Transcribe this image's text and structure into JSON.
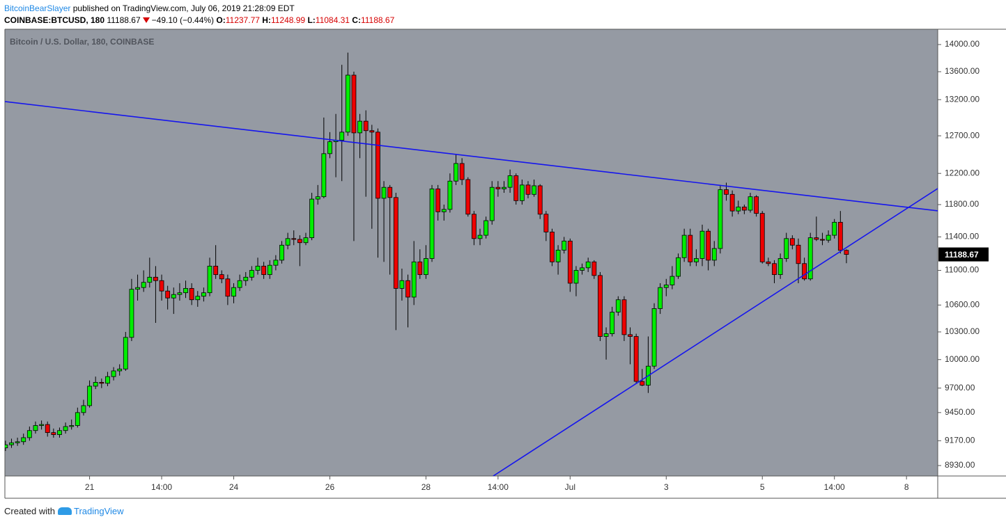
{
  "header": {
    "author": "BitcoinBearSlayer",
    "published": "published on TradingView.com, July 06, 2019 21:28:09 EDT",
    "symbol": "COINBASE:BTCUSD, 180",
    "last": "11188.67",
    "change": "−49.10 (−0.44%)",
    "o": {
      "label": "O:",
      "value": "11237.77"
    },
    "h": {
      "label": "H:",
      "value": "11248.99"
    },
    "l": {
      "label": "L:",
      "value": "11084.31"
    },
    "c": {
      "label": "C:",
      "value": "11188.67"
    }
  },
  "footer": {
    "text": "Created with",
    "brand": "TradingView"
  },
  "chart_data": {
    "type": "candlestick",
    "title": "Bitcoin / U.S. Dollar, 180, COINBASE",
    "log_scale": true,
    "grid": false,
    "up_color": "#00ee00",
    "down_color": "#ee0000",
    "background": "#959aa3",
    "trendline_color": "#1515ee",
    "ylim": [
      8831,
      14231
    ],
    "yticks": [
      {
        "value": 14000,
        "label": "14000.00"
      },
      {
        "value": 13600,
        "label": "13600.00"
      },
      {
        "value": 13200,
        "label": "13200.00"
      },
      {
        "value": 12700,
        "label": "12700.00"
      },
      {
        "value": 12200,
        "label": "12200.00"
      },
      {
        "value": 11800,
        "label": "11800.00"
      },
      {
        "value": 11400,
        "label": "11400.00"
      },
      {
        "value": 11000,
        "label": "11000.00"
      },
      {
        "value": 10600,
        "label": "10600.00"
      },
      {
        "value": 10300,
        "label": "10300.00"
      },
      {
        "value": 10000,
        "label": "10000.00"
      },
      {
        "value": 9700,
        "label": "9700.00"
      },
      {
        "value": 9450,
        "label": "9450.00"
      },
      {
        "value": 9170,
        "label": "9170.00"
      },
      {
        "value": 8930,
        "label": "8930.00"
      }
    ],
    "xlim": [
      -0.1,
      155.2
    ],
    "xticks": [
      {
        "value": 14,
        "label": "21"
      },
      {
        "value": 26,
        "label": "14:00"
      },
      {
        "value": 38,
        "label": "24"
      },
      {
        "value": 54,
        "label": "26"
      },
      {
        "value": 70,
        "label": "28"
      },
      {
        "value": 82,
        "label": "14:00"
      },
      {
        "value": 94,
        "label": "Jul"
      },
      {
        "value": 110,
        "label": "3"
      },
      {
        "value": 126,
        "label": "5"
      },
      {
        "value": 138,
        "label": "14:00"
      },
      {
        "value": 150,
        "label": "8"
      }
    ],
    "last_price": 11188.67,
    "trendlines": [
      {
        "x": [
          -0.1,
          155.2
        ],
        "y": [
          13173,
          11722
        ]
      },
      {
        "x": [
          81.2,
          155.2
        ],
        "y": [
          8831,
          12005
        ]
      }
    ],
    "ohlc": [
      [
        9100,
        9170,
        9070,
        9130
      ],
      [
        9130,
        9190,
        9100,
        9150
      ],
      [
        9150,
        9200,
        9120,
        9160
      ],
      [
        9160,
        9240,
        9130,
        9200
      ],
      [
        9200,
        9310,
        9170,
        9270
      ],
      [
        9270,
        9360,
        9240,
        9320
      ],
      [
        9320,
        9370,
        9280,
        9330
      ],
      [
        9330,
        9360,
        9210,
        9250
      ],
      [
        9250,
        9290,
        9200,
        9230
      ],
      [
        9230,
        9300,
        9200,
        9270
      ],
      [
        9270,
        9350,
        9240,
        9310
      ],
      [
        9310,
        9380,
        9280,
        9320
      ],
      [
        9320,
        9500,
        9300,
        9450
      ],
      [
        9450,
        9580,
        9420,
        9520
      ],
      [
        9520,
        9780,
        9500,
        9720
      ],
      [
        9720,
        9820,
        9690,
        9760
      ],
      [
        9760,
        9800,
        9700,
        9750
      ],
      [
        9750,
        9870,
        9720,
        9820
      ],
      [
        9820,
        9920,
        9780,
        9880
      ],
      [
        9880,
        9950,
        9830,
        9900
      ],
      [
        9900,
        10300,
        9880,
        10240
      ],
      [
        10240,
        10900,
        10200,
        10780
      ],
      [
        10780,
        10950,
        10650,
        10800
      ],
      [
        10800,
        11000,
        10750,
        10860
      ],
      [
        10860,
        11150,
        10800,
        10920
      ],
      [
        10920,
        11050,
        10400,
        10880
      ],
      [
        10880,
        10950,
        10650,
        10760
      ],
      [
        10760,
        10820,
        10550,
        10680
      ],
      [
        10680,
        10800,
        10500,
        10720
      ],
      [
        10720,
        10850,
        10650,
        10740
      ],
      [
        10740,
        10880,
        10680,
        10790
      ],
      [
        10790,
        10850,
        10600,
        10660
      ],
      [
        10660,
        10760,
        10580,
        10700
      ],
      [
        10700,
        10800,
        10640,
        10740
      ],
      [
        10740,
        11150,
        10700,
        11050
      ],
      [
        11050,
        11300,
        10900,
        10950
      ],
      [
        10950,
        11000,
        10850,
        10900
      ],
      [
        10900,
        10950,
        10600,
        10700
      ],
      [
        10700,
        10850,
        10620,
        10800
      ],
      [
        10800,
        10950,
        10760,
        10880
      ],
      [
        10880,
        10980,
        10820,
        10920
      ],
      [
        10920,
        11050,
        10880,
        11000
      ],
      [
        11000,
        11150,
        10950,
        11050
      ],
      [
        11050,
        11100,
        10900,
        10950
      ],
      [
        10950,
        11120,
        10900,
        11060
      ],
      [
        11060,
        11180,
        11000,
        11120
      ],
      [
        11120,
        11350,
        11080,
        11300
      ],
      [
        11300,
        11450,
        11250,
        11380
      ],
      [
        11380,
        11480,
        11300,
        11370
      ],
      [
        11370,
        11420,
        11050,
        11330
      ],
      [
        11330,
        11450,
        11300,
        11390
      ],
      [
        11390,
        11950,
        11360,
        11870
      ],
      [
        11870,
        12050,
        11800,
        11900
      ],
      [
        11900,
        12950,
        11880,
        12460
      ],
      [
        12460,
        12750,
        12400,
        12620
      ],
      [
        12620,
        13000,
        12150,
        12640
      ],
      [
        12640,
        13700,
        12100,
        12750
      ],
      [
        12750,
        13880,
        12700,
        13550
      ],
      [
        13550,
        13600,
        11350,
        12740
      ],
      [
        12740,
        13000,
        12400,
        12900
      ],
      [
        12900,
        13050,
        11900,
        12770
      ],
      [
        12770,
        12850,
        11500,
        12750
      ],
      [
        12750,
        12800,
        11150,
        11880
      ],
      [
        11880,
        12100,
        11100,
        12020
      ],
      [
        12020,
        12050,
        10950,
        11890
      ],
      [
        11890,
        11950,
        10320,
        10790
      ],
      [
        10790,
        11020,
        10650,
        10880
      ],
      [
        10880,
        10950,
        10350,
        10690
      ],
      [
        10690,
        11350,
        10600,
        11100
      ],
      [
        11100,
        11250,
        10900,
        10950
      ],
      [
        10950,
        11300,
        10900,
        11140
      ],
      [
        11140,
        12050,
        11100,
        12000
      ],
      [
        12000,
        12050,
        11600,
        11710
      ],
      [
        11710,
        11800,
        11600,
        11740
      ],
      [
        11740,
        12200,
        11700,
        12100
      ],
      [
        12100,
        12450,
        12050,
        12330
      ],
      [
        12330,
        12400,
        12050,
        12120
      ],
      [
        12120,
        12150,
        11650,
        11680
      ],
      [
        11680,
        11720,
        11300,
        11380
      ],
      [
        11380,
        11500,
        11300,
        11420
      ],
      [
        11420,
        11650,
        11380,
        11600
      ],
      [
        11600,
        12100,
        11550,
        12020
      ],
      [
        12020,
        12100,
        11900,
        12000
      ],
      [
        12000,
        12100,
        11950,
        12020
      ],
      [
        12020,
        12250,
        11950,
        12170
      ],
      [
        12170,
        12200,
        11800,
        11850
      ],
      [
        11850,
        12120,
        11800,
        12050
      ],
      [
        12050,
        12100,
        11880,
        11930
      ],
      [
        11930,
        12120,
        11900,
        12040
      ],
      [
        12040,
        12060,
        11620,
        11680
      ],
      [
        11680,
        11720,
        11350,
        11460
      ],
      [
        11460,
        11500,
        11050,
        11100
      ],
      [
        11100,
        11300,
        10950,
        11240
      ],
      [
        11240,
        11400,
        11200,
        11350
      ],
      [
        11350,
        11380,
        10750,
        10850
      ],
      [
        10850,
        11050,
        10700,
        11000
      ],
      [
        11000,
        11080,
        10950,
        11030
      ],
      [
        11030,
        11150,
        10980,
        11100
      ],
      [
        11100,
        11120,
        10900,
        10940
      ],
      [
        10940,
        10980,
        10200,
        10250
      ],
      [
        10250,
        10350,
        10000,
        10280
      ],
      [
        10280,
        10580,
        10250,
        10520
      ],
      [
        10520,
        10700,
        10480,
        10660
      ],
      [
        10660,
        10700,
        10200,
        10270
      ],
      [
        10270,
        10350,
        9950,
        10250
      ],
      [
        10250,
        10280,
        9750,
        9770
      ],
      [
        9770,
        9900,
        9720,
        9730
      ],
      [
        9730,
        10250,
        9650,
        9930
      ],
      [
        9930,
        10620,
        9900,
        10560
      ],
      [
        10560,
        10850,
        10500,
        10800
      ],
      [
        10800,
        10900,
        10700,
        10830
      ],
      [
        10830,
        11050,
        10780,
        10930
      ],
      [
        10930,
        11200,
        10900,
        11150
      ],
      [
        11150,
        11500,
        11100,
        11420
      ],
      [
        11420,
        11500,
        11050,
        11100
      ],
      [
        11100,
        11250,
        11050,
        11140
      ],
      [
        11140,
        11550,
        11050,
        11470
      ],
      [
        11470,
        11500,
        11000,
        11120
      ],
      [
        11120,
        11350,
        11050,
        11260
      ],
      [
        11260,
        12050,
        11200,
        11990
      ],
      [
        11990,
        12080,
        11850,
        11930
      ],
      [
        11930,
        11980,
        11650,
        11720
      ],
      [
        11720,
        11850,
        11680,
        11770
      ],
      [
        11770,
        11800,
        11680,
        11730
      ],
      [
        11730,
        11950,
        11700,
        11900
      ],
      [
        11900,
        11920,
        11650,
        11690
      ],
      [
        11690,
        11720,
        11080,
        11100
      ],
      [
        11100,
        11150,
        11050,
        11080
      ],
      [
        11080,
        11120,
        10850,
        10950
      ],
      [
        10950,
        11200,
        10900,
        11140
      ],
      [
        11140,
        11450,
        11100,
        11380
      ],
      [
        11380,
        11420,
        11250,
        11300
      ],
      [
        11300,
        11380,
        10850,
        11080
      ],
      [
        11080,
        11150,
        10880,
        10900
      ],
      [
        10900,
        11450,
        10880,
        11390
      ],
      [
        11390,
        11650,
        11350,
        11370
      ],
      [
        11370,
        11450,
        11300,
        11360
      ],
      [
        11360,
        11480,
        11330,
        11420
      ],
      [
        11420,
        11620,
        11380,
        11580
      ],
      [
        11580,
        11720,
        11200,
        11237.77
      ],
      [
        11237.77,
        11248.99,
        11084.31,
        11188.67
      ]
    ]
  }
}
